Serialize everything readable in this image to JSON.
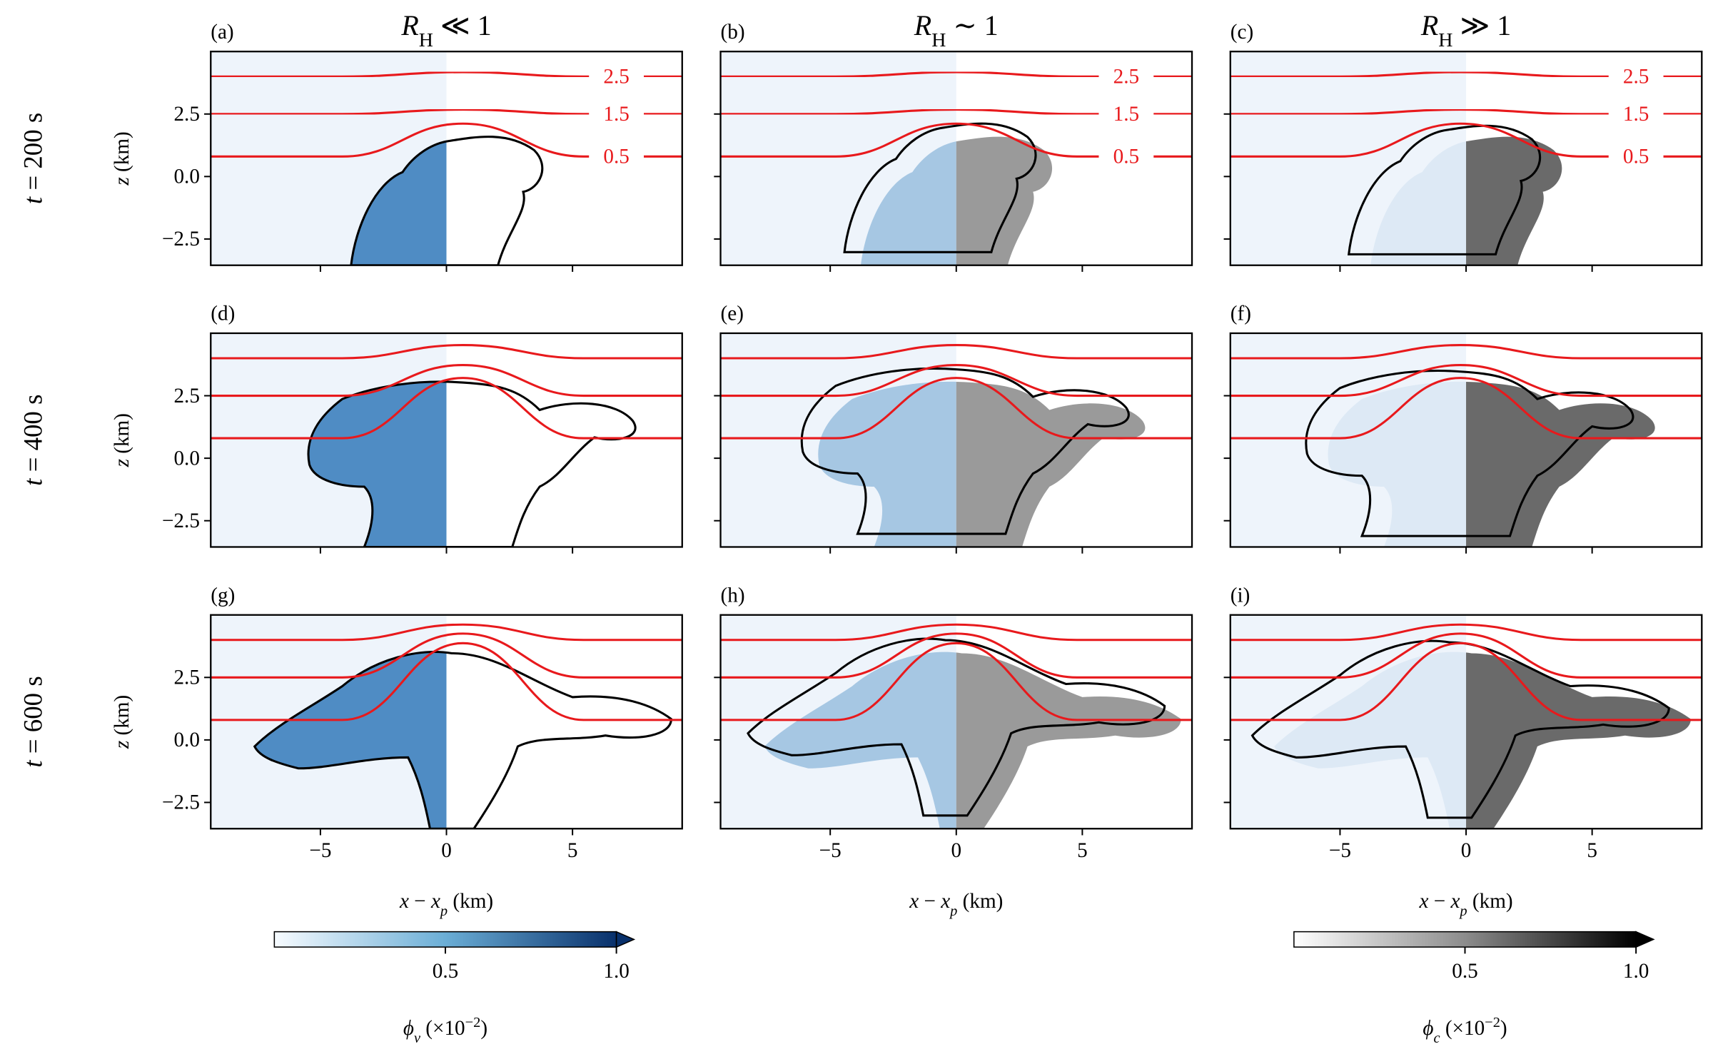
{
  "column_titles": [
    {
      "symbol": "R",
      "sub": "H",
      "rel": " ≪ 1"
    },
    {
      "symbol": "R",
      "sub": "H",
      "rel": " ∼ 1"
    },
    {
      "symbol": "R",
      "sub": "H",
      "rel": " ≫ 1"
    }
  ],
  "row_titles": [
    {
      "var": "t",
      "rel": " = 200 s"
    },
    {
      "var": "t",
      "rel": " = 400 s"
    },
    {
      "var": "t",
      "rel": " = 600 s"
    }
  ],
  "panel_labels": [
    "(a)",
    "(b)",
    "(c)",
    "(d)",
    "(e)",
    "(f)",
    "(g)",
    "(h)",
    "(i)"
  ],
  "axes": {
    "xlabel": {
      "a": "x",
      "op": " − ",
      "b": "x",
      "sub": "p",
      "unit": " (km)"
    },
    "ylabel": {
      "var": "z",
      "unit": " (km)"
    },
    "xlim": [
      -9.35,
      9.35
    ],
    "ylim": [
      -3.55,
      5.0
    ],
    "xticks": [
      {
        "value": -5,
        "label": "−5"
      },
      0,
      5
    ],
    "yticks": [
      {
        "value": -2.5,
        "label": "−2.5"
      },
      {
        "value": 0,
        "label": "0.0"
      },
      2.5
    ]
  },
  "contour_labels": [
    2.5,
    1.5,
    0.5
  ],
  "colorbars": [
    {
      "symbol": "ϕ",
      "sub": "v",
      "pre": " (×10",
      "sup": "−2",
      "post": ")",
      "colors": [
        "#f7fbff",
        "#6baed6",
        "#08306b"
      ],
      "lim": [
        0,
        1.0
      ],
      "ticks": [
        0.5,
        {
          "value": 1.0,
          "label": "1.0"
        }
      ]
    },
    {
      "symbol": "ϕ",
      "sub": "c",
      "pre": " (×10",
      "sup": "−2",
      "post": ")",
      "colors": [
        "#ffffff",
        "#8c8c8c",
        "#000000"
      ],
      "lim": [
        0,
        1.0
      ],
      "ticks": [
        0.5,
        {
          "value": 1.0,
          "label": "1.0"
        }
      ]
    }
  ]
}
